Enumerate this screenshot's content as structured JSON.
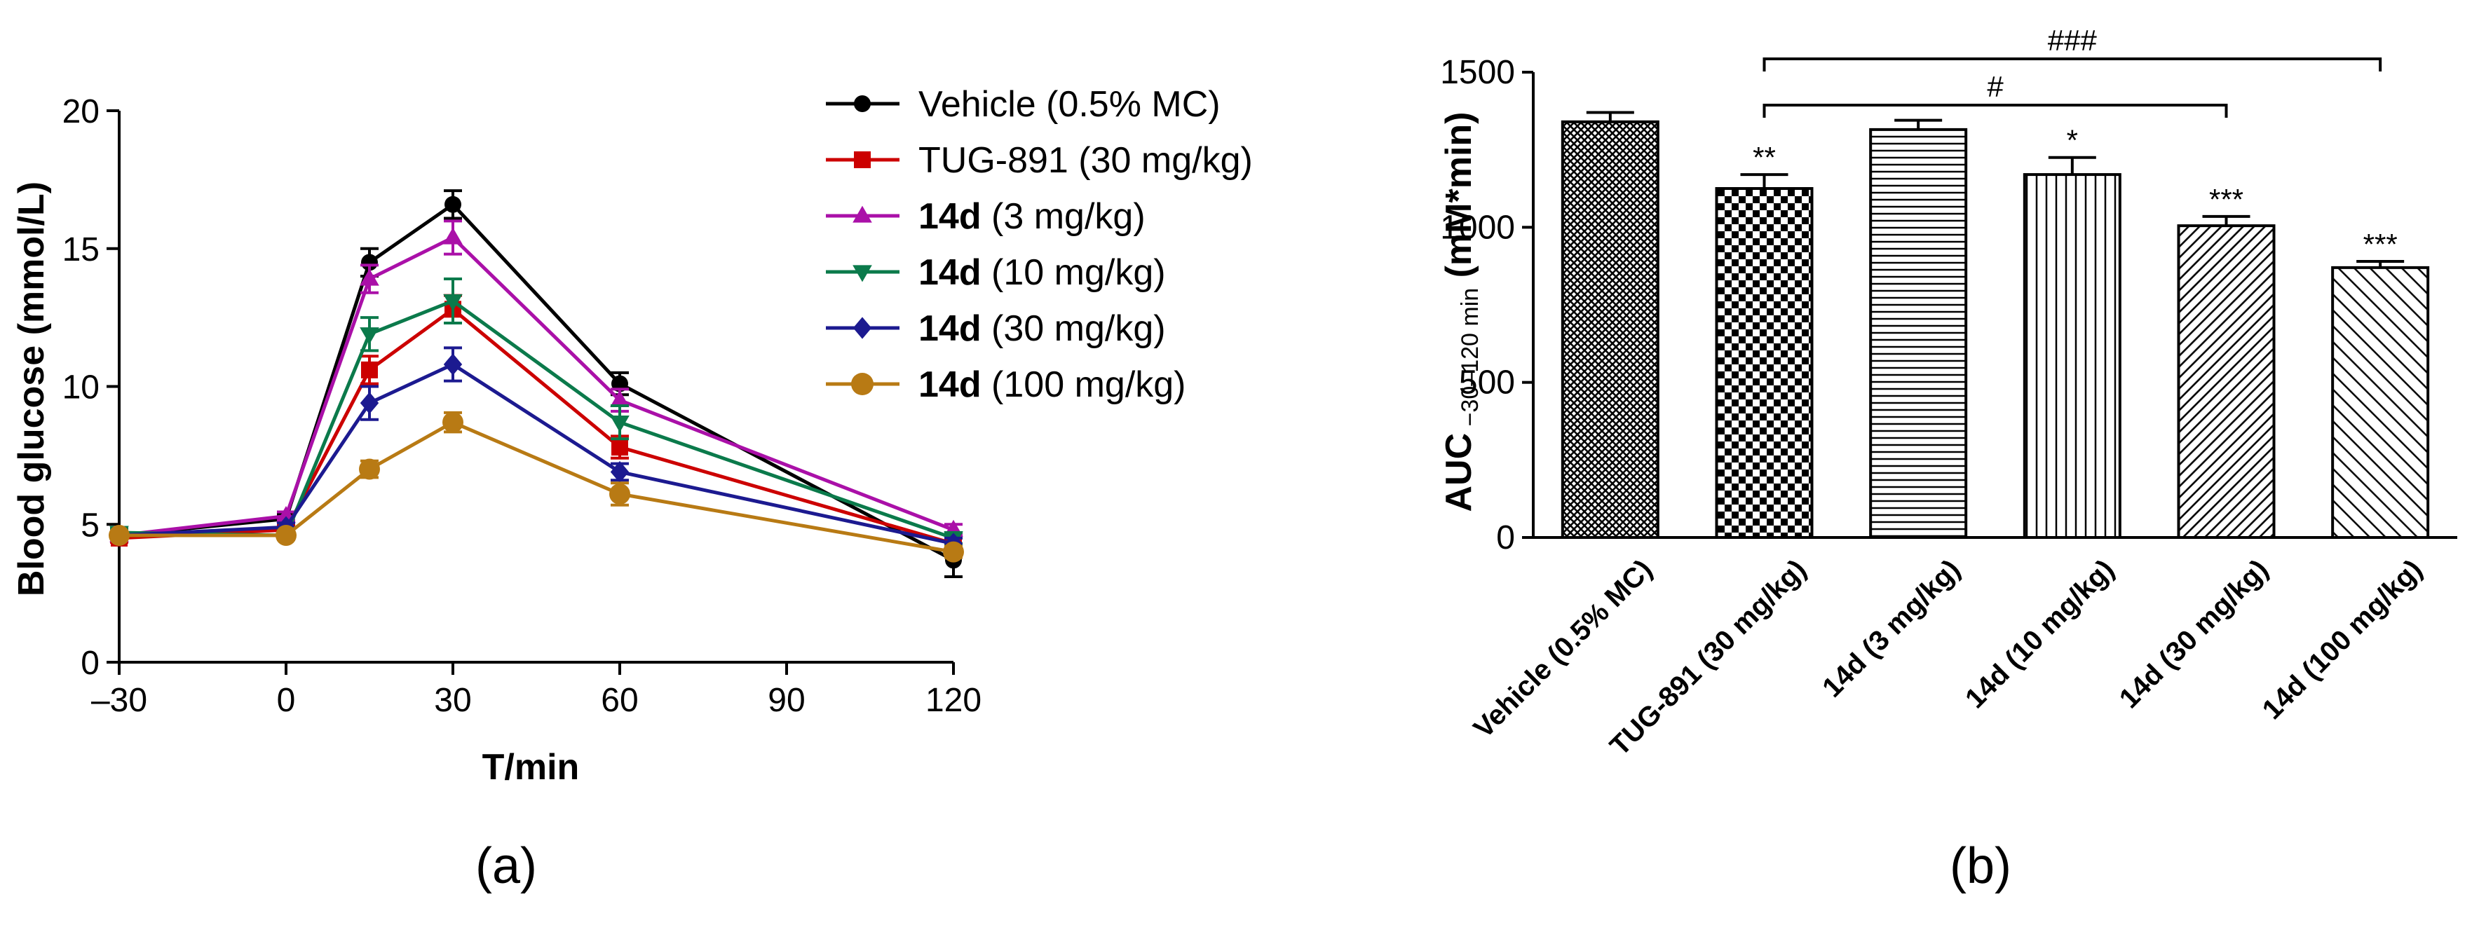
{
  "chart_data": [
    {
      "type": "line",
      "panel_label": "(a)",
      "xlabel": "T/min",
      "ylabel": "Blood glucose (mmol/L)",
      "xlim": [
        -30,
        120
      ],
      "ylim": [
        0,
        20
      ],
      "x_ticks": [
        -30,
        0,
        30,
        60,
        90,
        120
      ],
      "x_tick_labels": [
        "–30",
        "0",
        "30",
        "60",
        "90",
        "120"
      ],
      "y_ticks": [
        0,
        5,
        10,
        15,
        20
      ],
      "y_tick_labels": [
        "0",
        "5",
        "10",
        "15",
        "20"
      ],
      "x": [
        -30,
        0,
        15,
        30,
        60,
        120
      ],
      "legend_position": "right",
      "series": [
        {
          "name_bold": "",
          "name": "Vehicle (0.5% MC)",
          "color": "#000000",
          "marker": "circle",
          "values": [
            4.6,
            5.2,
            14.5,
            16.6,
            10.1,
            3.7
          ],
          "errors": [
            0.15,
            0.15,
            0.5,
            0.5,
            0.4,
            0.6
          ]
        },
        {
          "name_bold": "",
          "name": "TUG-891 (30 mg/kg)",
          "color": "#cc0000",
          "marker": "square",
          "values": [
            4.5,
            4.8,
            10.6,
            12.8,
            7.8,
            4.3
          ],
          "errors": [
            0.15,
            0.15,
            0.5,
            0.5,
            0.4,
            0.2
          ]
        },
        {
          "name_bold": "14d",
          "name": " (3 mg/kg)",
          "color": "#aa10a8",
          "marker": "triangle-up",
          "values": [
            4.6,
            5.3,
            13.9,
            15.4,
            9.5,
            4.8
          ],
          "errors": [
            0.15,
            0.15,
            0.5,
            0.6,
            0.4,
            0.2
          ]
        },
        {
          "name_bold": "14d",
          "name": " (10 mg/kg)",
          "color": "#0b7a4b",
          "marker": "triangle-down",
          "values": [
            4.7,
            4.6,
            11.9,
            13.1,
            8.7,
            4.5
          ],
          "errors": [
            0.15,
            0.15,
            0.6,
            0.8,
            0.6,
            0.2
          ]
        },
        {
          "name_bold": "14d",
          "name": " (30 mg/kg)",
          "color": "#1c1a90",
          "marker": "diamond",
          "values": [
            4.6,
            4.9,
            9.4,
            10.8,
            6.9,
            4.3
          ],
          "errors": [
            0.15,
            0.15,
            0.6,
            0.6,
            0.3,
            0.2
          ]
        },
        {
          "name_bold": "14d",
          "name": " (100 mg/kg)",
          "color": "#b87a14",
          "marker": "circle",
          "values": [
            4.6,
            4.6,
            7.0,
            8.7,
            6.1,
            4.0
          ],
          "errors": [
            0.15,
            0.15,
            0.3,
            0.35,
            0.4,
            0.2
          ]
        }
      ]
    },
    {
      "type": "bar",
      "panel_label": "(b)",
      "ylabel_main": "AUC",
      "ylabel_sub": " −30–120 min",
      "ylabel_unit": " (mM*min)",
      "ylim": [
        0,
        1500
      ],
      "y_ticks": [
        0,
        500,
        1000,
        1500
      ],
      "y_tick_labels": [
        "0",
        "500",
        "1000",
        "1500"
      ],
      "categories": [
        "Vehicle (0.5% MC)",
        "TUG-891 (30 mg/kg)",
        "14d (3 mg/kg)",
        "14d (10 mg/kg)",
        "14d (30 mg/kg)",
        "14d (100 mg/kg)"
      ],
      "values": [
        1340,
        1125,
        1315,
        1170,
        1005,
        870
      ],
      "errors": [
        30,
        45,
        30,
        55,
        30,
        20
      ],
      "patterns": [
        "crosshatch",
        "checker",
        "hlines",
        "vlines",
        "diag-dense",
        "diag-sparse"
      ],
      "significance": [
        "",
        "**",
        "",
        "*",
        "***",
        "***"
      ],
      "comparisons": [
        {
          "from": 1,
          "to": 4,
          "label": "#"
        },
        {
          "from": 1,
          "to": 5,
          "label": "###"
        }
      ]
    }
  ]
}
